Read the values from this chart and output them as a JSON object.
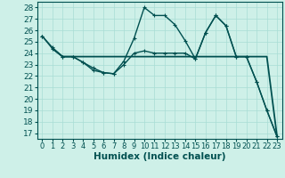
{
  "xlabel": "Humidex (Indice chaleur)",
  "bg_color": "#cef0e8",
  "grid_color": "#a8ddd4",
  "line_color": "#005050",
  "xlim": [
    -0.5,
    23.5
  ],
  "ylim": [
    16.5,
    28.5
  ],
  "yticks": [
    17,
    18,
    19,
    20,
    21,
    22,
    23,
    24,
    25,
    26,
    27,
    28
  ],
  "xticks": [
    0,
    1,
    2,
    3,
    4,
    5,
    6,
    7,
    8,
    9,
    10,
    11,
    12,
    13,
    14,
    15,
    16,
    17,
    18,
    19,
    20,
    21,
    22,
    23
  ],
  "curve1_x": [
    0,
    1,
    2,
    3,
    4,
    5,
    6,
    7,
    8,
    9,
    10,
    11,
    12,
    13,
    14,
    15,
    16,
    17,
    18,
    19,
    20,
    21,
    22,
    23
  ],
  "curve1_y": [
    25.5,
    24.5,
    23.7,
    23.7,
    23.2,
    22.7,
    22.3,
    22.2,
    23.3,
    25.3,
    28.0,
    27.3,
    27.3,
    26.5,
    25.1,
    23.5,
    25.8,
    27.3,
    26.4,
    23.7,
    23.7,
    21.5,
    19.0,
    16.7
  ],
  "curve2_x": [
    1,
    2,
    3,
    4,
    5,
    6,
    7,
    8,
    9,
    10,
    11,
    12,
    13,
    14,
    15,
    16,
    17,
    18,
    19,
    20,
    21,
    22,
    23
  ],
  "curve2_y": [
    24.4,
    23.7,
    23.7,
    23.7,
    23.7,
    23.7,
    23.7,
    23.7,
    23.7,
    23.7,
    23.7,
    23.7,
    23.7,
    23.7,
    23.7,
    23.7,
    23.7,
    23.7,
    23.7,
    23.7,
    23.7,
    23.7,
    16.7
  ],
  "curve3_x": [
    0,
    1,
    2,
    3,
    4,
    5,
    6,
    7,
    8,
    9,
    10,
    11,
    12,
    13,
    14,
    15,
    16,
    17,
    18,
    19,
    20,
    21,
    22,
    23
  ],
  "curve3_y": [
    25.5,
    24.4,
    23.7,
    23.7,
    23.2,
    22.5,
    22.3,
    22.2,
    23.0,
    24.0,
    24.2,
    24.0,
    24.0,
    24.0,
    24.0,
    23.5,
    25.8,
    27.3,
    26.4,
    23.7,
    23.7,
    21.5,
    19.0,
    16.7
  ],
  "lw": 1.0,
  "tick_fontsize": 6.5,
  "xlabel_fontsize": 7.5
}
